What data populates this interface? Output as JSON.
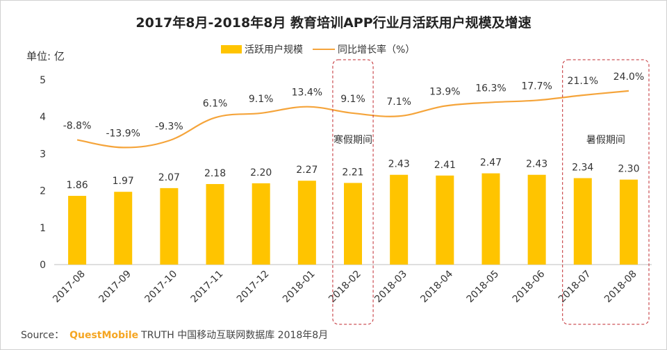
{
  "colors": {
    "bar": "#FFC400",
    "line": "#F5A43A",
    "axis": "#bfbfbf",
    "highlight_box": "#c0272d"
  },
  "chart_data": {
    "type": "bar",
    "title": "2017年8月-2018年8月 教育培训APP行业月活跃用户规模及增速",
    "unit_label": "单位: 亿",
    "categories": [
      "2017-08",
      "2017-09",
      "2017-10",
      "2017-11",
      "2017-12",
      "2018-01",
      "2018-02",
      "2018-03",
      "2018-04",
      "2018-05",
      "2018-06",
      "2018-07",
      "2018-08"
    ],
    "ylim": [
      0,
      5
    ],
    "y_ticks": [
      "0",
      "1",
      "2",
      "3",
      "4",
      "5"
    ],
    "grid": false,
    "legend_position": "top-center",
    "series": [
      {
        "name": "活跃用户规模",
        "type": "bar",
        "values": [
          1.86,
          1.97,
          2.07,
          2.18,
          2.2,
          2.27,
          2.21,
          2.43,
          2.41,
          2.47,
          2.43,
          2.34,
          2.3
        ],
        "labels": [
          "1.86",
          "1.97",
          "2.07",
          "2.18",
          "2.20",
          "2.27",
          "2.21",
          "2.43",
          "2.41",
          "2.47",
          "2.43",
          "2.34",
          "2.30"
        ]
      },
      {
        "name": "同比增长率（%）",
        "type": "line",
        "values": [
          -8.8,
          -13.9,
          -9.3,
          6.1,
          9.1,
          13.4,
          9.1,
          7.1,
          13.9,
          16.3,
          17.7,
          21.1,
          24.0
        ],
        "labels": [
          "-8.8%",
          "-13.9%",
          "-9.3%",
          "6.1%",
          "9.1%",
          "13.4%",
          "9.1%",
          "7.1%",
          "13.9%",
          "16.3%",
          "17.7%",
          "21.1%",
          "24.0%"
        ]
      }
    ],
    "annotations": [
      {
        "text": "寒假期间",
        "categories": [
          "2018-02"
        ]
      },
      {
        "text": "暑假期间",
        "categories": [
          "2018-07",
          "2018-08"
        ]
      }
    ]
  },
  "source": {
    "prefix": "Source：",
    "brand": "QuestMobile",
    "text": "TRUTH 中国移动互联网数据库 2018年8月"
  }
}
